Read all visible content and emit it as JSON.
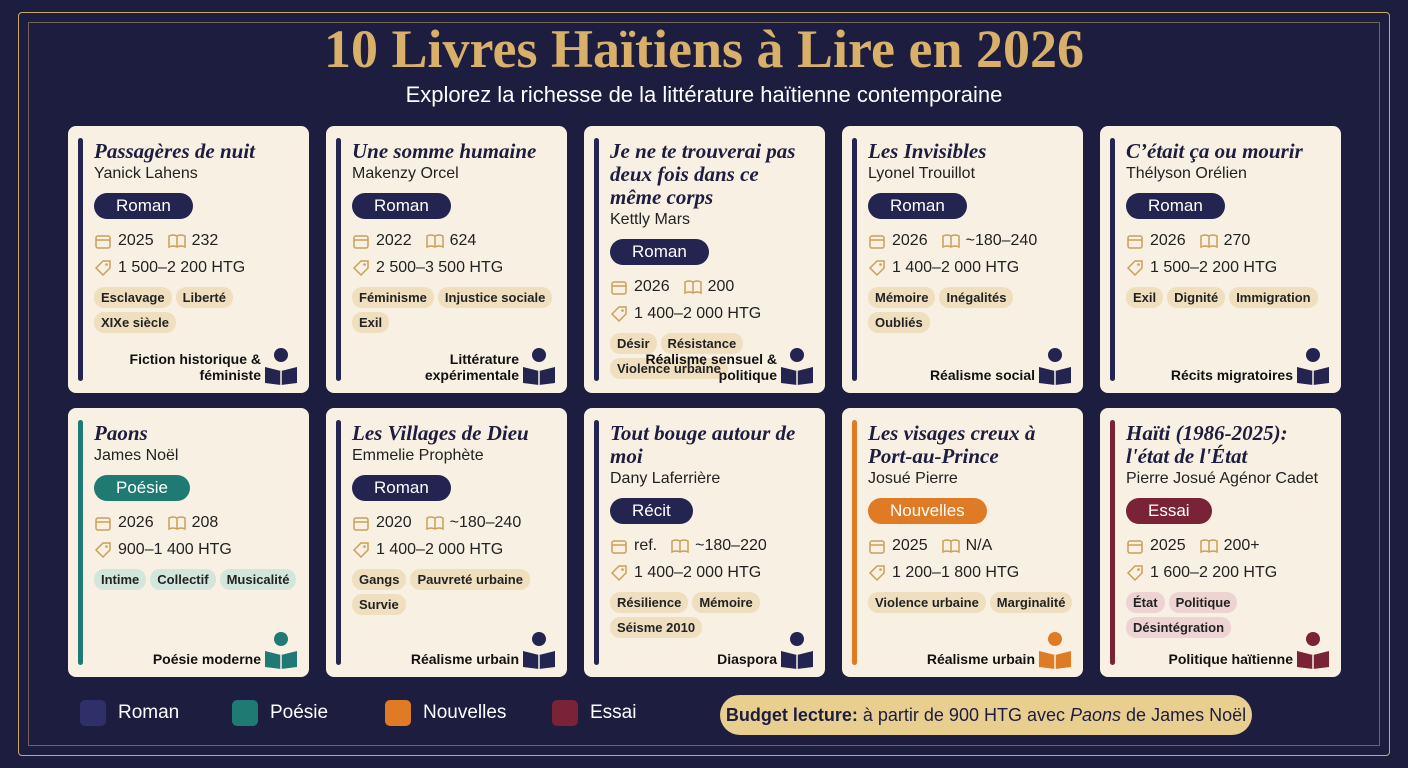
{
  "header": {
    "title": "10 Livres Haïtiens à Lire en 2026",
    "subtitle": "Explorez la richesse de la littérature haïtienne contemporaine"
  },
  "books": [
    {
      "title": "Passagères de nuit",
      "author": "Yanick Lahens",
      "genre": "Roman",
      "year": "2025",
      "pages": "232",
      "price": "1 500–2 200 HTG",
      "tags": [
        "Esclavage",
        "Liberté",
        "XIXe siècle"
      ],
      "theme": "Fiction historique & féministe",
      "color": "#23244f",
      "tag_color": "#f0dfbf"
    },
    {
      "title": "Une somme humaine",
      "author": "Makenzy Orcel",
      "genre": "Roman",
      "year": "2022",
      "pages": "624",
      "price": "2 500–3 500 HTG",
      "tags": [
        "Féminisme",
        "Injustice sociale",
        "Exil"
      ],
      "theme": "Littérature expérimentale",
      "color": "#23244f",
      "tag_color": "#f0dfbf"
    },
    {
      "title": "Je ne te trouverai pas deux fois dans ce même corps",
      "author": "Kettly Mars",
      "genre": "Roman",
      "year": "2026",
      "pages": "200",
      "price": "1 400–2 000 HTG",
      "tags": [
        "Désir",
        "Résistance",
        "Violence urbaine"
      ],
      "theme": "Réalisme sensuel & politique",
      "color": "#23244f",
      "tag_color": "#f0dfbf"
    },
    {
      "title": "Les Invisibles",
      "author": "Lyonel Trouillot",
      "genre": "Roman",
      "year": "2026",
      "pages": "~180–240",
      "price": "1 400–2 000 HTG",
      "tags": [
        "Mémoire",
        "Inégalités",
        "Oubliés"
      ],
      "theme": "Réalisme social",
      "color": "#23244f",
      "tag_color": "#f0dfbf"
    },
    {
      "title": "C’était ça ou mourir",
      "author": "Thélyson Orélien",
      "genre": "Roman",
      "year": "2026",
      "pages": "270",
      "price": "1 500–2 200 HTG",
      "tags": [
        "Exil",
        "Dignité",
        "Immigration"
      ],
      "theme": "Récits migratoires",
      "color": "#23244f",
      "tag_color": "#f0dfbf"
    },
    {
      "title": "Paons",
      "author": "James Noël",
      "genre": "Poésie",
      "year": "2026",
      "pages": "208",
      "price": "900–1 400 HTG",
      "tags": [
        "Intime",
        "Collectif",
        "Musicalité"
      ],
      "theme": "Poésie moderne",
      "color": "#1f7a73",
      "tag_color": "#d3e6dc"
    },
    {
      "title": "Les Villages de Dieu",
      "author": "Emmelie Prophète",
      "genre": "Roman",
      "year": "2020",
      "pages": "~180–240",
      "price": "1 400–2 000 HTG",
      "tags": [
        "Gangs",
        "Pauvreté urbaine",
        "Survie"
      ],
      "theme": "Réalisme urbain",
      "color": "#23244f",
      "tag_color": "#f0dfbf"
    },
    {
      "title": "Tout bouge autour de moi",
      "author": "Dany Laferrière",
      "genre": "Récit",
      "year": "ref.",
      "pages": "~180–220",
      "price": "1 400–2 000 HTG",
      "tags": [
        "Résilience",
        "Mémoire",
        "Séisme 2010"
      ],
      "theme": "Diaspora",
      "color": "#23244f",
      "tag_color": "#f0dfbf"
    },
    {
      "title": "Les visages creux à Port-au-Prince",
      "author": "Josué Pierre",
      "genre": "Nouvelles",
      "year": "2025",
      "pages": "N/A",
      "price": "1 200–1 800 HTG",
      "tags": [
        "Violence urbaine",
        "Marginalité"
      ],
      "theme": "Réalisme urbain",
      "color": "#e07b25",
      "tag_color": "#f0dfbf"
    },
    {
      "title": "Haïti (1986-2025): l'état de l'État",
      "author": "Pierre Josué Agénor Cadet",
      "genre": "Essai",
      "year": "2025",
      "pages": "200+",
      "price": "1 600–2 200 HTG",
      "tags": [
        "État",
        "Politique",
        "Désintégration"
      ],
      "theme": "Politique haïtienne",
      "color": "#7a2236",
      "tag_color": "#eed3d3"
    }
  ],
  "legend": [
    {
      "label": "Roman",
      "color": "#2f2f6a"
    },
    {
      "label": "Poésie",
      "color": "#1f7a73"
    },
    {
      "label": "Nouvelles",
      "color": "#e07b25"
    },
    {
      "label": "Essai",
      "color": "#7a2236"
    }
  ],
  "budget": {
    "label": "Budget lecture:",
    "text_before": "à partir de 900 HTG avec",
    "emphasis": "Paons",
    "text_after": "de James Noël"
  }
}
